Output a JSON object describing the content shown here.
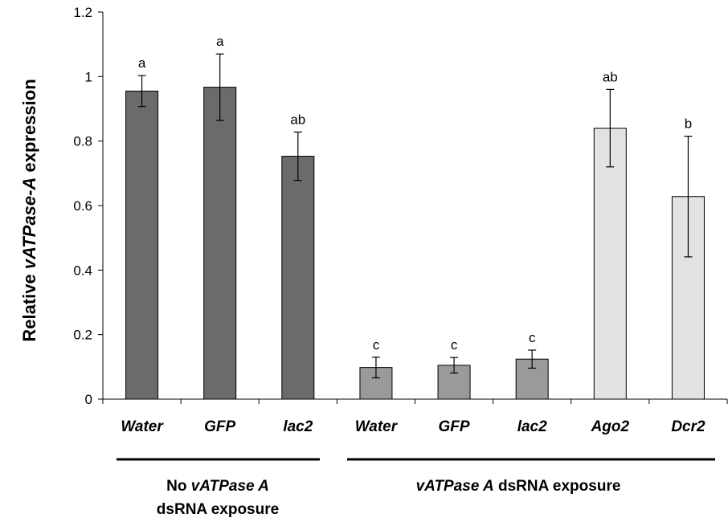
{
  "chart_data": {
    "type": "bar",
    "title": "",
    "ylabel": {
      "prefix": "Relative ",
      "italic": "vATPase-A",
      "suffix": " expression"
    },
    "ylim": [
      0,
      1.2
    ],
    "yticks": [
      0,
      0.2,
      0.4,
      0.6,
      0.8,
      1,
      1.2
    ],
    "grid": false,
    "categories": [
      "Water",
      "GFP",
      "lac2",
      "Water",
      "GFP",
      "lac2",
      "Ago2",
      "Dcr2"
    ],
    "values": [
      0.955,
      0.967,
      0.753,
      0.098,
      0.105,
      0.124,
      0.84,
      0.628
    ],
    "errors": [
      0.048,
      0.103,
      0.075,
      0.032,
      0.024,
      0.028,
      0.12,
      0.187
    ],
    "significance": [
      "a",
      "a",
      "ab",
      "c",
      "c",
      "c",
      "ab",
      "b"
    ],
    "bar_colors": [
      "#6b6b6b",
      "#6b6b6b",
      "#6b6b6b",
      "#9a9a9a",
      "#9a9a9a",
      "#9a9a9a",
      "#e2e2e2",
      "#e2e2e2"
    ],
    "groups": [
      {
        "line1_italic": "vATPase A",
        "line1_prefix": "No ",
        "line2": "dsRNA exposure",
        "categories": [
          0,
          1,
          2
        ]
      },
      {
        "italic": "vATPase A",
        "suffix": " dsRNA exposure",
        "categories": [
          3,
          4,
          5,
          6,
          7
        ]
      }
    ]
  }
}
